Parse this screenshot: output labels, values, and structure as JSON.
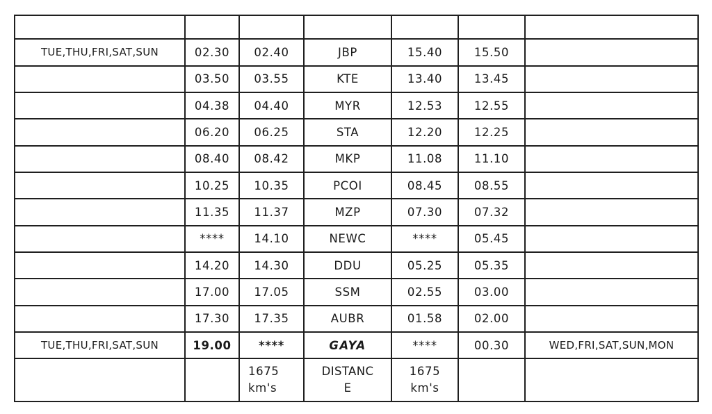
{
  "page": {
    "background_color": "#ffffff",
    "border_color": "#1f1f1f",
    "text_color": "#1a1a1a"
  },
  "table": {
    "description": "train timetable",
    "rows": [
      {
        "cells": [
          "",
          "",
          "",
          "",
          "",
          "",
          ""
        ]
      },
      {
        "cells": [
          "TUE,THU,FRI,SAT,SUN",
          "02.30",
          "02.40",
          "JBP",
          "15.40",
          "15.50",
          ""
        ]
      },
      {
        "cells": [
          "",
          "03.50",
          "03.55",
          "KTE",
          "13.40",
          "13.45",
          ""
        ]
      },
      {
        "cells": [
          "",
          "04.38",
          "04.40",
          "MYR",
          "12.53",
          "12.55",
          ""
        ]
      },
      {
        "cells": [
          "",
          "06.20",
          "06.25",
          "STA",
          "12.20",
          "12.25",
          ""
        ]
      },
      {
        "cells": [
          "",
          "08.40",
          "08.42",
          "MKP",
          "11.08",
          "11.10",
          ""
        ]
      },
      {
        "cells": [
          "",
          "10.25",
          "10.35",
          "PCOI",
          "08.45",
          "08.55",
          ""
        ]
      },
      {
        "cells": [
          "",
          "11.35",
          "11.37",
          "MZP",
          "07.30",
          "07.32",
          ""
        ]
      },
      {
        "cells": [
          "",
          "****",
          "14.10",
          "NEWC",
          "****",
          "05.45",
          ""
        ]
      },
      {
        "cells": [
          "",
          "14.20",
          "14.30",
          "DDU",
          "05.25",
          "05.35",
          ""
        ]
      },
      {
        "cells": [
          "",
          "17.00",
          "17.05",
          "SSM",
          "02.55",
          "03.00",
          ""
        ]
      },
      {
        "cells": [
          "",
          "17.30",
          "17.35",
          "AUBR",
          "01.58",
          "02.00",
          ""
        ]
      },
      {
        "cells": [
          "TUE,THU,FRI,SAT,SUN",
          "19.00",
          "****",
          "GAYA",
          "****",
          "00.30",
          "WED,FRI,SAT,SUN,MON"
        ]
      },
      {
        "cells": [
          "",
          "",
          "1675 km's",
          "DISTANCE",
          "1675 km's",
          "",
          ""
        ]
      }
    ]
  }
}
